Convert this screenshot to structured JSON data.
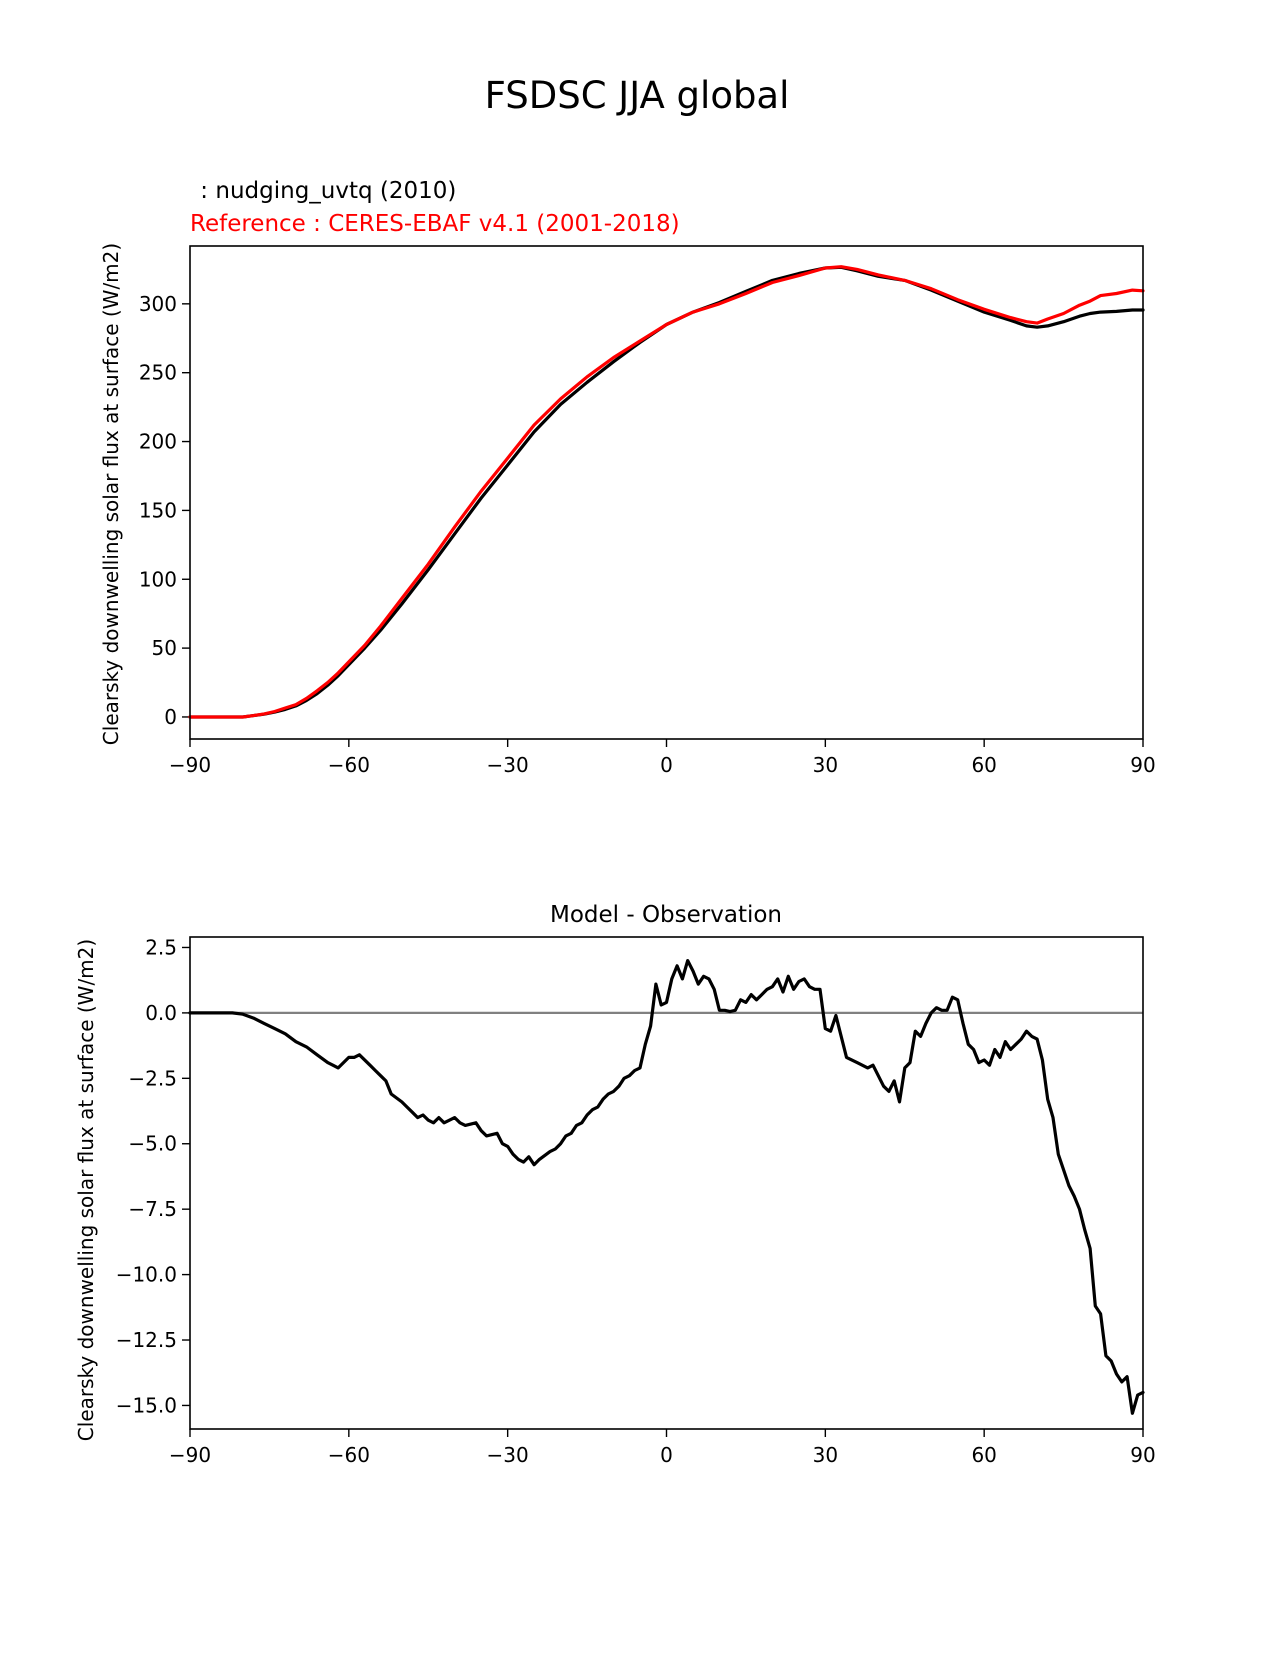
{
  "figure": {
    "title": "FSDSC JJA global"
  },
  "chart_data": [
    {
      "type": "line",
      "test_label": " : nudging_uvtq (2010)",
      "ref_label": "Reference : CERES-EBAF v4.1 (2001-2018)",
      "ylabel": "Clearsky downwelling solar flux at surface (W/m2)",
      "xlabel": "",
      "xlim": [
        -90,
        90
      ],
      "ylim": [
        -16,
        342
      ],
      "xticks": [
        -90,
        -60,
        -30,
        0,
        30,
        60,
        90
      ],
      "xtick_labels": [
        "−90",
        "−60",
        "−30",
        "0",
        "30",
        "60",
        "90"
      ],
      "yticks": [
        0,
        50,
        100,
        150,
        200,
        250,
        300
      ],
      "ytick_labels": [
        "0",
        "50",
        "100",
        "150",
        "200",
        "250",
        "300"
      ],
      "colors": {
        "test": "#000000",
        "reference": "#ff0000"
      },
      "series": [
        {
          "key": "test",
          "x": [
            -90,
            -85,
            -80,
            -78,
            -76,
            -74,
            -72,
            -70,
            -68,
            -66,
            -64,
            -62,
            -60,
            -57,
            -54,
            -50,
            -45,
            -40,
            -35,
            -30,
            -25,
            -20,
            -15,
            -10,
            -5,
            0,
            5,
            10,
            15,
            20,
            25,
            30,
            33,
            36,
            40,
            45,
            50,
            55,
            60,
            65,
            68,
            70,
            72,
            75,
            78,
            80,
            82,
            85,
            88,
            90
          ],
          "y": [
            0,
            0,
            0,
            1,
            2,
            3.5,
            5.5,
            8,
            12,
            17,
            23,
            30,
            38,
            50,
            63,
            82,
            107,
            133,
            159,
            183,
            207,
            227,
            243,
            258,
            272,
            285,
            294,
            301,
            309,
            317,
            322,
            326,
            326.5,
            324,
            320,
            317,
            310,
            302,
            294,
            288,
            284,
            283,
            284,
            287,
            291,
            293,
            294,
            294.5,
            295.5,
            295.5
          ]
        },
        {
          "key": "reference",
          "x": [
            -90,
            -85,
            -80,
            -78,
            -76,
            -74,
            -72,
            -70,
            -68,
            -66,
            -64,
            -62,
            -60,
            -57,
            -54,
            -50,
            -45,
            -40,
            -35,
            -30,
            -25,
            -20,
            -15,
            -10,
            -5,
            0,
            5,
            10,
            15,
            20,
            25,
            30,
            33,
            36,
            40,
            45,
            50,
            55,
            60,
            65,
            68,
            70,
            72,
            75,
            78,
            80,
            82,
            85,
            88,
            90
          ],
          "y": [
            0,
            0,
            0,
            1,
            2.2,
            4,
            6.5,
            9,
            13.5,
            19,
            25,
            32,
            40,
            52,
            66,
            86,
            111,
            138,
            164,
            188,
            212,
            231,
            247,
            261,
            273,
            285,
            294,
            300,
            307.5,
            315.5,
            320.5,
            326,
            327,
            325,
            321,
            317,
            311,
            303,
            296,
            290,
            287,
            286,
            289,
            293,
            299,
            302,
            306,
            307.5,
            310,
            309.5
          ]
        }
      ]
    },
    {
      "type": "line",
      "title": "Model - Observation",
      "ylabel": "Clearsky downwelling solar flux at surface (W/m2)",
      "xlabel": "",
      "xlim": [
        -90,
        90
      ],
      "ylim": [
        -15.9,
        2.9
      ],
      "xticks": [
        -90,
        -60,
        -30,
        0,
        30,
        60,
        90
      ],
      "xtick_labels": [
        "−90",
        "−60",
        "−30",
        "0",
        "30",
        "60",
        "90"
      ],
      "yticks": [
        2.5,
        0.0,
        -2.5,
        -5.0,
        -7.5,
        -10.0,
        -12.5,
        -15.0
      ],
      "ytick_labels": [
        "2.5",
        "0.0",
        "−2.5",
        "−5.0",
        "−7.5",
        "−10.0",
        "−12.5",
        "−15.0"
      ],
      "zero_line": 0,
      "colors": {
        "diff": "#000000",
        "zero": "#808080"
      },
      "series": [
        {
          "key": "diff",
          "x": [
            -90,
            -82,
            -80,
            -78,
            -76,
            -74,
            -72,
            -70,
            -68,
            -66,
            -64,
            -63,
            -62,
            -60,
            -59,
            -58,
            -56,
            -55,
            -54,
            -53,
            -52,
            -50,
            -49,
            -48,
            -47,
            -46,
            -45,
            -44,
            -43,
            -42,
            -41,
            -40,
            -39,
            -38,
            -36,
            -35,
            -34,
            -32,
            -31,
            -30,
            -29,
            -28,
            -27,
            -26,
            -25,
            -24,
            -22,
            -21,
            -20,
            -19,
            -18,
            -17,
            -16,
            -15,
            -14,
            -13,
            -12,
            -11,
            -10,
            -9,
            -8,
            -7,
            -6,
            -5,
            -4,
            -3,
            -2,
            -1,
            0,
            1,
            2,
            3,
            4,
            5,
            6,
            7,
            8,
            9,
            10,
            11,
            12,
            13,
            14,
            15,
            16,
            17,
            18,
            19,
            20,
            21,
            22,
            23,
            24,
            25,
            26,
            27,
            28,
            29,
            30,
            31,
            32,
            34,
            36,
            38,
            39,
            40,
            41,
            42,
            43,
            44,
            45,
            46,
            47,
            48,
            49,
            50,
            51,
            52,
            53,
            54,
            55,
            56,
            57,
            58,
            59,
            60,
            61,
            62,
            63,
            64,
            65,
            66,
            67,
            68,
            69,
            70,
            71,
            72,
            73,
            74,
            75,
            76,
            77,
            78,
            79,
            80,
            81,
            82,
            83,
            84,
            85,
            86,
            87,
            88,
            89,
            90
          ],
          "y": [
            0,
            0,
            -0.05,
            -0.2,
            -0.4,
            -0.6,
            -0.8,
            -1.1,
            -1.3,
            -1.6,
            -1.9,
            -2.0,
            -2.1,
            -1.7,
            -1.7,
            -1.6,
            -2.0,
            -2.2,
            -2.4,
            -2.6,
            -3.1,
            -3.4,
            -3.6,
            -3.8,
            -4.0,
            -3.9,
            -4.1,
            -4.2,
            -4.0,
            -4.2,
            -4.1,
            -4.0,
            -4.2,
            -4.3,
            -4.2,
            -4.5,
            -4.7,
            -4.6,
            -5.0,
            -5.1,
            -5.4,
            -5.6,
            -5.7,
            -5.5,
            -5.8,
            -5.6,
            -5.3,
            -5.2,
            -5.0,
            -4.7,
            -4.6,
            -4.3,
            -4.2,
            -3.9,
            -3.7,
            -3.6,
            -3.3,
            -3.1,
            -3.0,
            -2.8,
            -2.5,
            -2.4,
            -2.2,
            -2.1,
            -1.2,
            -0.5,
            1.1,
            0.3,
            0.4,
            1.3,
            1.8,
            1.3,
            2.0,
            1.6,
            1.1,
            1.4,
            1.3,
            0.9,
            0.1,
            0.1,
            0.05,
            0.1,
            0.5,
            0.4,
            0.7,
            0.5,
            0.7,
            0.9,
            1.0,
            1.3,
            0.8,
            1.4,
            0.9,
            1.2,
            1.3,
            1.0,
            0.9,
            0.9,
            -0.6,
            -0.7,
            -0.1,
            -1.7,
            -1.9,
            -2.1,
            -2.0,
            -2.4,
            -2.8,
            -3.0,
            -2.6,
            -3.4,
            -2.1,
            -1.9,
            -0.7,
            -0.9,
            -0.4,
            0.0,
            0.2,
            0.1,
            0.1,
            0.6,
            0.5,
            -0.4,
            -1.2,
            -1.4,
            -1.9,
            -1.8,
            -2.0,
            -1.4,
            -1.7,
            -1.1,
            -1.4,
            -1.2,
            -1.0,
            -0.7,
            -0.9,
            -1.0,
            -1.8,
            -3.3,
            -4.0,
            -5.4,
            -6.0,
            -6.6,
            -7.0,
            -7.5,
            -8.3,
            -9.0,
            -11.2,
            -11.5,
            -13.1,
            -13.3,
            -13.8,
            -14.1,
            -13.9,
            -15.3,
            -14.6,
            -14.5
          ]
        }
      ]
    }
  ]
}
